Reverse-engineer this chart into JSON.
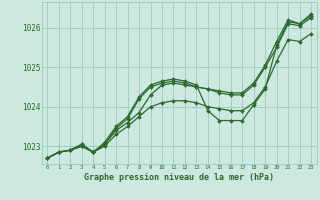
{
  "xlabel": "Graphe pression niveau de la mer (hPa)",
  "bg_color": "#cce8e0",
  "grid_color": "#99ccbb",
  "line_color": "#2d6a2d",
  "ylim": [
    1022.55,
    1026.65
  ],
  "xlim": [
    -0.5,
    23.5
  ],
  "yticks": [
    1023,
    1024,
    1025,
    1026
  ],
  "xticks": [
    0,
    1,
    2,
    3,
    4,
    5,
    6,
    7,
    8,
    9,
    10,
    11,
    12,
    13,
    14,
    15,
    16,
    17,
    18,
    19,
    20,
    21,
    22,
    23
  ],
  "series": [
    [
      1022.7,
      1022.85,
      1022.9,
      1023.0,
      1022.85,
      1023.0,
      1023.3,
      1023.5,
      1023.75,
      1024.0,
      1024.1,
      1024.15,
      1024.15,
      1024.1,
      1024.0,
      1023.95,
      1023.9,
      1023.9,
      1024.1,
      1024.5,
      1025.15,
      1025.7,
      1025.65,
      1025.85
    ],
    [
      1022.7,
      1022.85,
      1022.9,
      1023.0,
      1022.85,
      1023.05,
      1023.45,
      1023.7,
      1024.2,
      1024.5,
      1024.6,
      1024.65,
      1024.6,
      1024.5,
      1024.45,
      1024.4,
      1024.35,
      1024.35,
      1024.6,
      1025.05,
      1025.65,
      1026.2,
      1026.1,
      1026.35
    ],
    [
      1022.7,
      1022.85,
      1022.9,
      1023.05,
      1022.85,
      1023.1,
      1023.5,
      1023.75,
      1024.25,
      1024.55,
      1024.65,
      1024.7,
      1024.65,
      1024.55,
      1023.9,
      1023.65,
      1023.65,
      1023.65,
      1024.05,
      1024.45,
      1025.55,
      1026.15,
      1026.1,
      1026.3
    ],
    [
      1022.7,
      1022.85,
      1022.9,
      1023.05,
      1022.85,
      1023.05,
      1023.4,
      1023.6,
      1023.85,
      1024.3,
      1024.55,
      1024.6,
      1024.55,
      1024.5,
      1024.45,
      1024.35,
      1024.3,
      1024.3,
      1024.55,
      1025.0,
      1025.5,
      1026.1,
      1026.05,
      1026.25
    ]
  ]
}
